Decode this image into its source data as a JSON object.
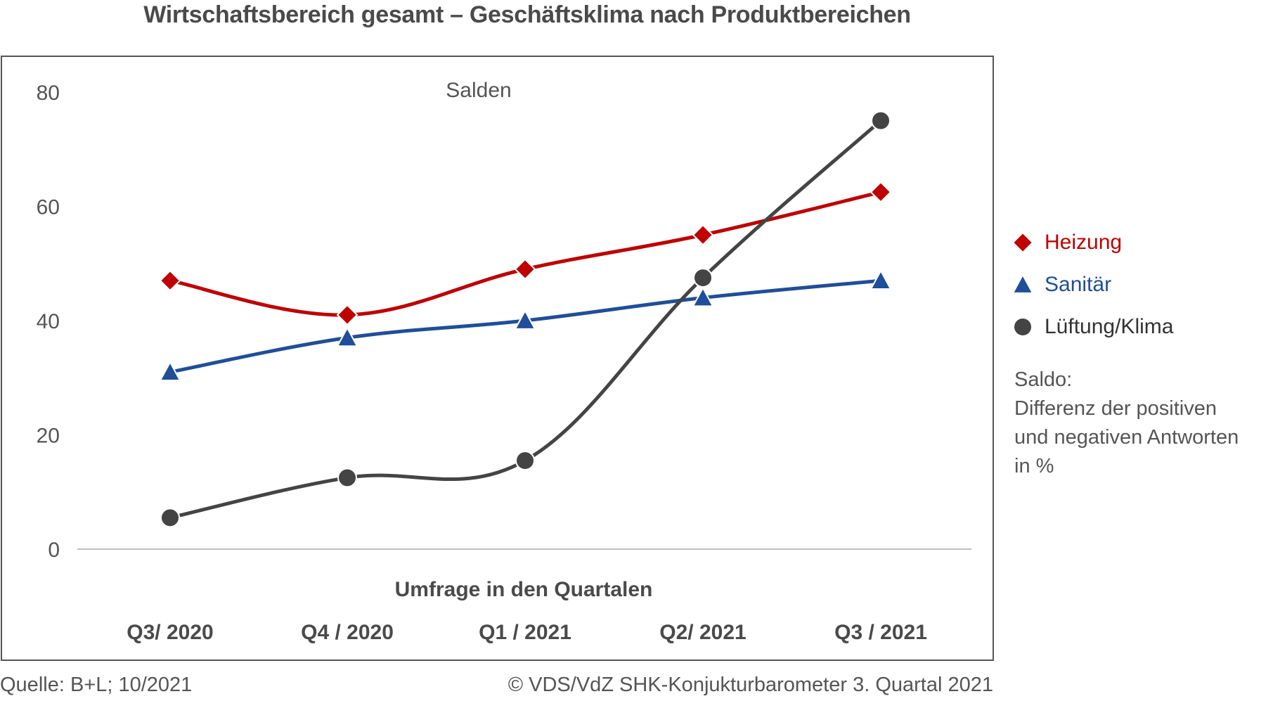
{
  "title": "Wirtschaftsbereich gesamt – Geschäftsklima nach Produktbereichen",
  "chart_data": {
    "type": "line",
    "subtitle": "Salden",
    "xlabel": "Umfrage in den Quartalen",
    "categories": [
      "Q3/ 2020",
      "Q4 / 2020",
      "Q1 / 2021",
      "Q2/ 2021",
      "Q3 / 2021"
    ],
    "ylim": [
      0,
      80
    ],
    "yticks": [
      "0",
      "20",
      "40",
      "60",
      "80"
    ],
    "series": [
      {
        "name": "Heizung",
        "values": [
          47,
          41,
          49,
          55,
          62.5
        ],
        "color": "#c00000",
        "marker": "diamond"
      },
      {
        "name": "Sanitär",
        "values": [
          31,
          37,
          40,
          44,
          47
        ],
        "color": "#1f4e9a",
        "marker": "triangle"
      },
      {
        "name": "Lüftung/Klima",
        "values": [
          5.5,
          12.5,
          15.5,
          47.5,
          75
        ],
        "color": "#444444",
        "marker": "circle"
      }
    ]
  },
  "note": {
    "lines": [
      "Saldo:",
      "Differenz der positiven",
      "und negativen Antworten",
      "in %"
    ]
  },
  "footer": {
    "source": "Quelle: B+L; 10/2021",
    "copyright": "© VDS/VdZ SHK-Konjukturbarometer 3. Quartal 2021"
  }
}
